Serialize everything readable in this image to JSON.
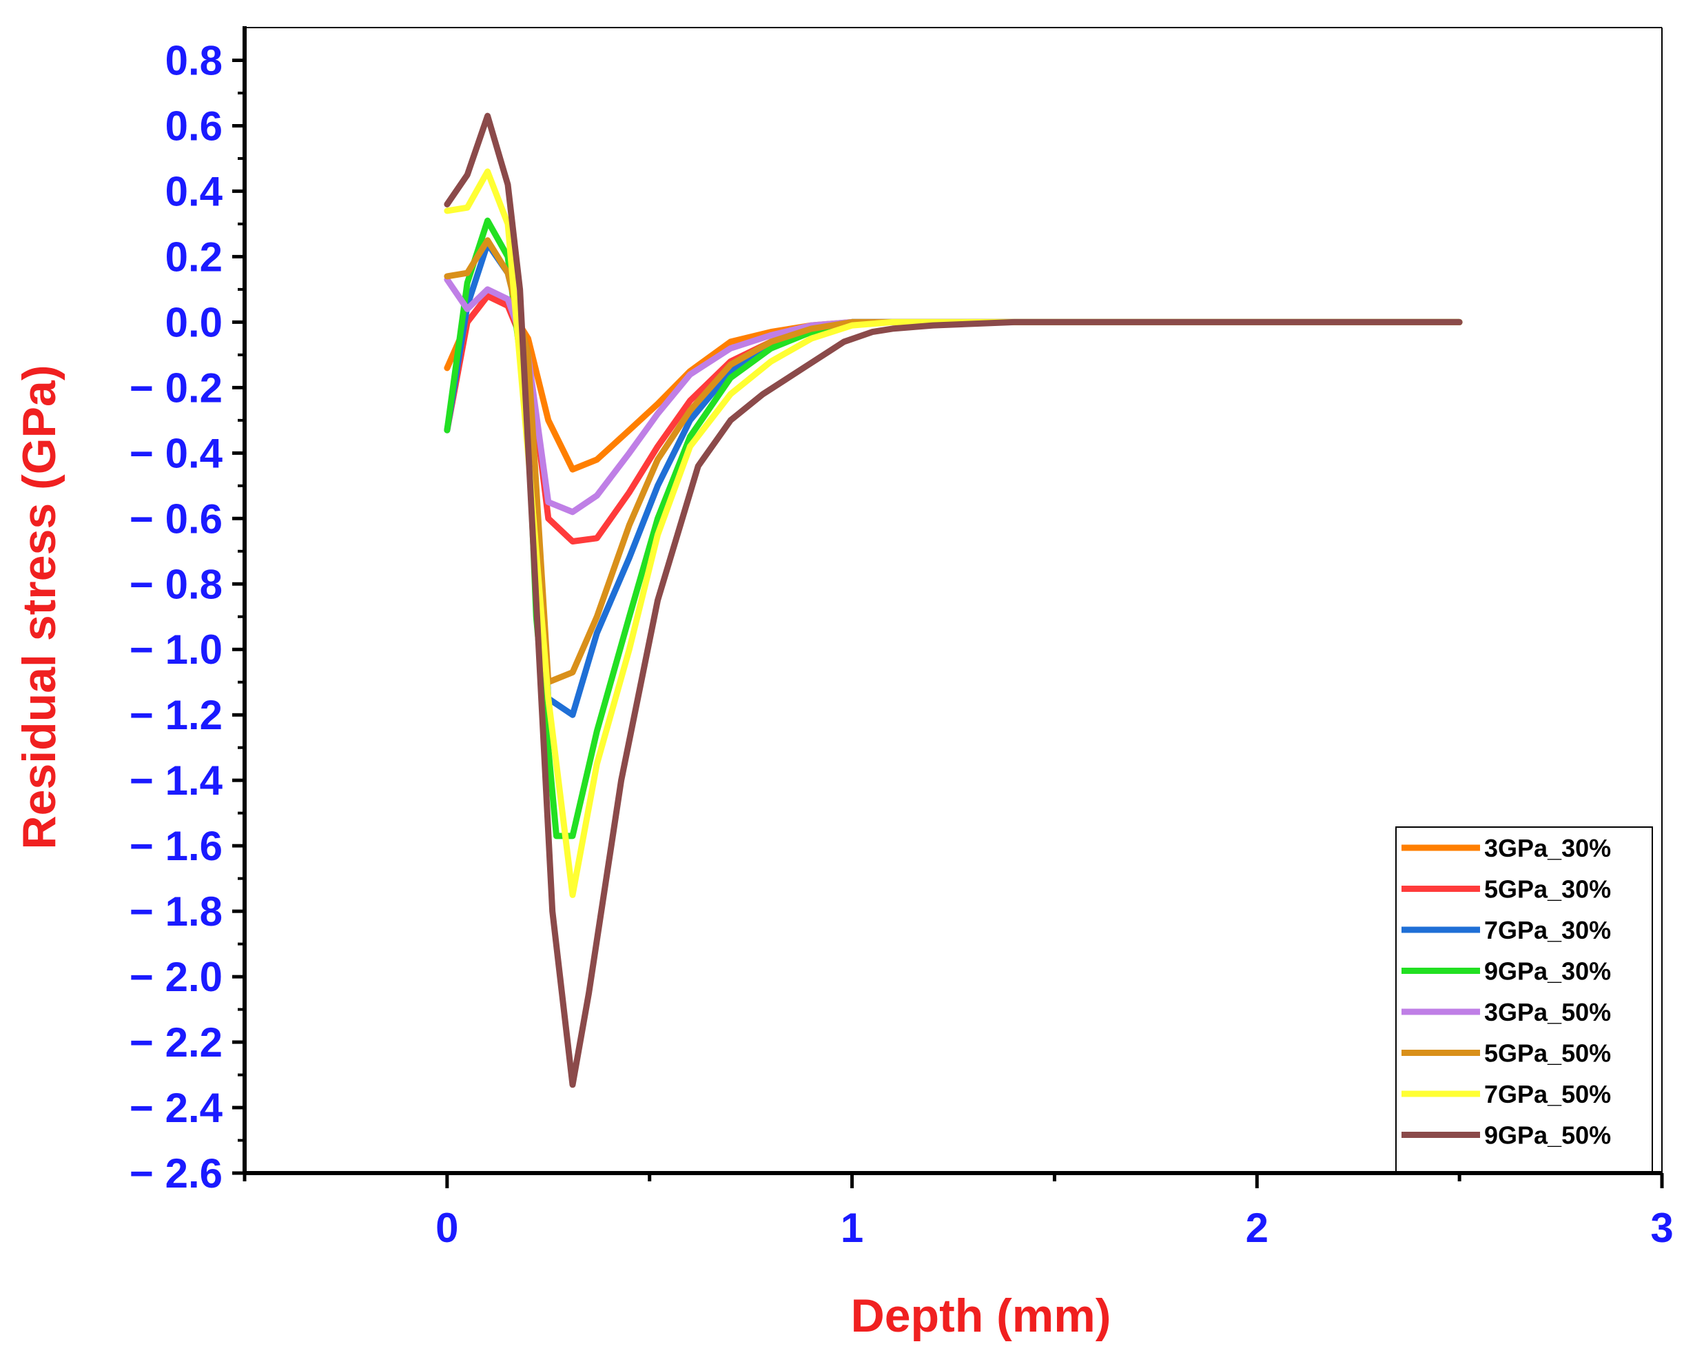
{
  "chart_data": {
    "type": "line",
    "title": "",
    "xlabel": "Depth (mm)",
    "ylabel": "Residual stress (GPa)",
    "xlim": [
      -0.5,
      3
    ],
    "ylim": [
      -2.6,
      0.9
    ],
    "x_ticks": [
      0,
      1,
      2,
      3
    ],
    "y_ticks": [
      0.8,
      0.6,
      0.4,
      0.2,
      0.0,
      -0.2,
      -0.4,
      -0.6,
      -0.8,
      -1.0,
      -1.2,
      -1.4,
      -1.6,
      -1.8,
      -2.0,
      -2.2,
      -2.4,
      -2.6
    ],
    "x_tick_labels": [
      "0",
      "1",
      "2",
      "3"
    ],
    "y_tick_labels": [
      "0.8",
      "0.6",
      "0.4",
      "0.2",
      "0.0",
      "− 0.2",
      "− 0.4",
      "− 0.6",
      "− 0.8",
      "− 1.0",
      "− 1.2",
      "− 1.4",
      "− 1.6",
      "− 1.8",
      "− 2.0",
      "− 2.2",
      "− 2.4",
      "− 2.6"
    ],
    "grid": false,
    "legend_position": "bottom-right",
    "colors": {
      "tick_labels": "#1a1aff",
      "axis_titles": "#f02020",
      "axes": "#000000"
    },
    "series": [
      {
        "name": "3GPa_30%",
        "color": "#ff7f00",
        "x": [
          0,
          0.05,
          0.1,
          0.15,
          0.2,
          0.25,
          0.31,
          0.37,
          0.45,
          0.52,
          0.6,
          0.7,
          0.8,
          0.9,
          1.0,
          1.1,
          1.3,
          1.5,
          2.5
        ],
        "y": [
          -0.14,
          0.0,
          0.08,
          0.05,
          -0.05,
          -0.3,
          -0.45,
          -0.42,
          -0.33,
          -0.25,
          -0.15,
          -0.06,
          -0.03,
          -0.01,
          0.0,
          0.0,
          0.0,
          0.0,
          0.0
        ]
      },
      {
        "name": "5GPa_30%",
        "color": "#ff3b3b",
        "x": [
          0,
          0.05,
          0.1,
          0.15,
          0.2,
          0.25,
          0.31,
          0.37,
          0.45,
          0.52,
          0.6,
          0.7,
          0.8,
          0.9,
          1.0,
          1.1,
          1.3,
          1.5,
          2.5
        ],
        "y": [
          -0.33,
          0.0,
          0.08,
          0.05,
          -0.1,
          -0.6,
          -0.67,
          -0.66,
          -0.52,
          -0.38,
          -0.24,
          -0.12,
          -0.06,
          -0.02,
          0.0,
          0.0,
          0.0,
          0.0,
          0.0
        ]
      },
      {
        "name": "7GPa_30%",
        "color": "#1f6fd6",
        "x": [
          0,
          0.05,
          0.1,
          0.15,
          0.2,
          0.25,
          0.31,
          0.37,
          0.45,
          0.52,
          0.6,
          0.7,
          0.8,
          0.9,
          1.0,
          1.1,
          1.3,
          1.5,
          2.5
        ],
        "y": [
          -0.33,
          0.05,
          0.24,
          0.15,
          -0.1,
          -1.15,
          -1.2,
          -0.95,
          -0.72,
          -0.5,
          -0.3,
          -0.15,
          -0.07,
          -0.03,
          0.0,
          0.0,
          0.0,
          0.0,
          0.0
        ]
      },
      {
        "name": "9GPa_30%",
        "color": "#22e022",
        "x": [
          0,
          0.05,
          0.1,
          0.15,
          0.2,
          0.22,
          0.27,
          0.31,
          0.37,
          0.45,
          0.52,
          0.6,
          0.7,
          0.8,
          0.9,
          1.0,
          1.1,
          1.3,
          1.5,
          2.5
        ],
        "y": [
          -0.33,
          0.12,
          0.31,
          0.2,
          -0.3,
          -0.9,
          -1.57,
          -1.57,
          -1.25,
          -0.9,
          -0.6,
          -0.35,
          -0.17,
          -0.08,
          -0.03,
          0.0,
          0.0,
          0.0,
          0.0,
          0.0
        ]
      },
      {
        "name": "3GPa_50%",
        "color": "#bf7fe6",
        "x": [
          0,
          0.05,
          0.1,
          0.15,
          0.2,
          0.25,
          0.31,
          0.37,
          0.45,
          0.52,
          0.6,
          0.7,
          0.8,
          0.9,
          1.0,
          1.1,
          1.3,
          1.5,
          2.5
        ],
        "y": [
          0.13,
          0.04,
          0.1,
          0.07,
          -0.1,
          -0.55,
          -0.58,
          -0.53,
          -0.4,
          -0.28,
          -0.16,
          -0.08,
          -0.04,
          -0.01,
          0.0,
          0.0,
          0.0,
          0.0,
          0.0
        ]
      },
      {
        "name": "5GPa_50%",
        "color": "#d9901a",
        "x": [
          0,
          0.05,
          0.1,
          0.15,
          0.2,
          0.25,
          0.31,
          0.37,
          0.45,
          0.52,
          0.6,
          0.7,
          0.8,
          0.9,
          1.0,
          1.1,
          1.3,
          1.5,
          2.5
        ],
        "y": [
          0.14,
          0.15,
          0.25,
          0.15,
          -0.1,
          -1.1,
          -1.07,
          -0.9,
          -0.62,
          -0.42,
          -0.27,
          -0.13,
          -0.06,
          -0.02,
          0.0,
          0.0,
          0.0,
          0.0,
          0.0
        ]
      },
      {
        "name": "7GPa_50%",
        "color": "#ffff33",
        "x": [
          0,
          0.05,
          0.1,
          0.15,
          0.2,
          0.25,
          0.31,
          0.37,
          0.45,
          0.52,
          0.6,
          0.7,
          0.8,
          0.9,
          1.0,
          1.1,
          1.3,
          1.5,
          2.5
        ],
        "y": [
          0.34,
          0.35,
          0.46,
          0.3,
          -0.4,
          -1.15,
          -1.75,
          -1.35,
          -1.0,
          -0.65,
          -0.38,
          -0.22,
          -0.12,
          -0.05,
          -0.01,
          0.0,
          0.0,
          0.0,
          0.0
        ]
      },
      {
        "name": "9GPa_50%",
        "color": "#8b4a4a",
        "x": [
          0,
          0.05,
          0.1,
          0.15,
          0.18,
          0.22,
          0.26,
          0.31,
          0.35,
          0.43,
          0.52,
          0.62,
          0.7,
          0.78,
          0.88,
          0.98,
          1.05,
          1.1,
          1.2,
          1.4,
          1.5,
          2.5
        ],
        "y": [
          0.36,
          0.45,
          0.63,
          0.42,
          0.1,
          -0.85,
          -1.8,
          -2.33,
          -2.05,
          -1.4,
          -0.85,
          -0.44,
          -0.3,
          -0.22,
          -0.14,
          -0.06,
          -0.03,
          -0.02,
          -0.01,
          0.0,
          0.0,
          0.0
        ]
      }
    ]
  }
}
